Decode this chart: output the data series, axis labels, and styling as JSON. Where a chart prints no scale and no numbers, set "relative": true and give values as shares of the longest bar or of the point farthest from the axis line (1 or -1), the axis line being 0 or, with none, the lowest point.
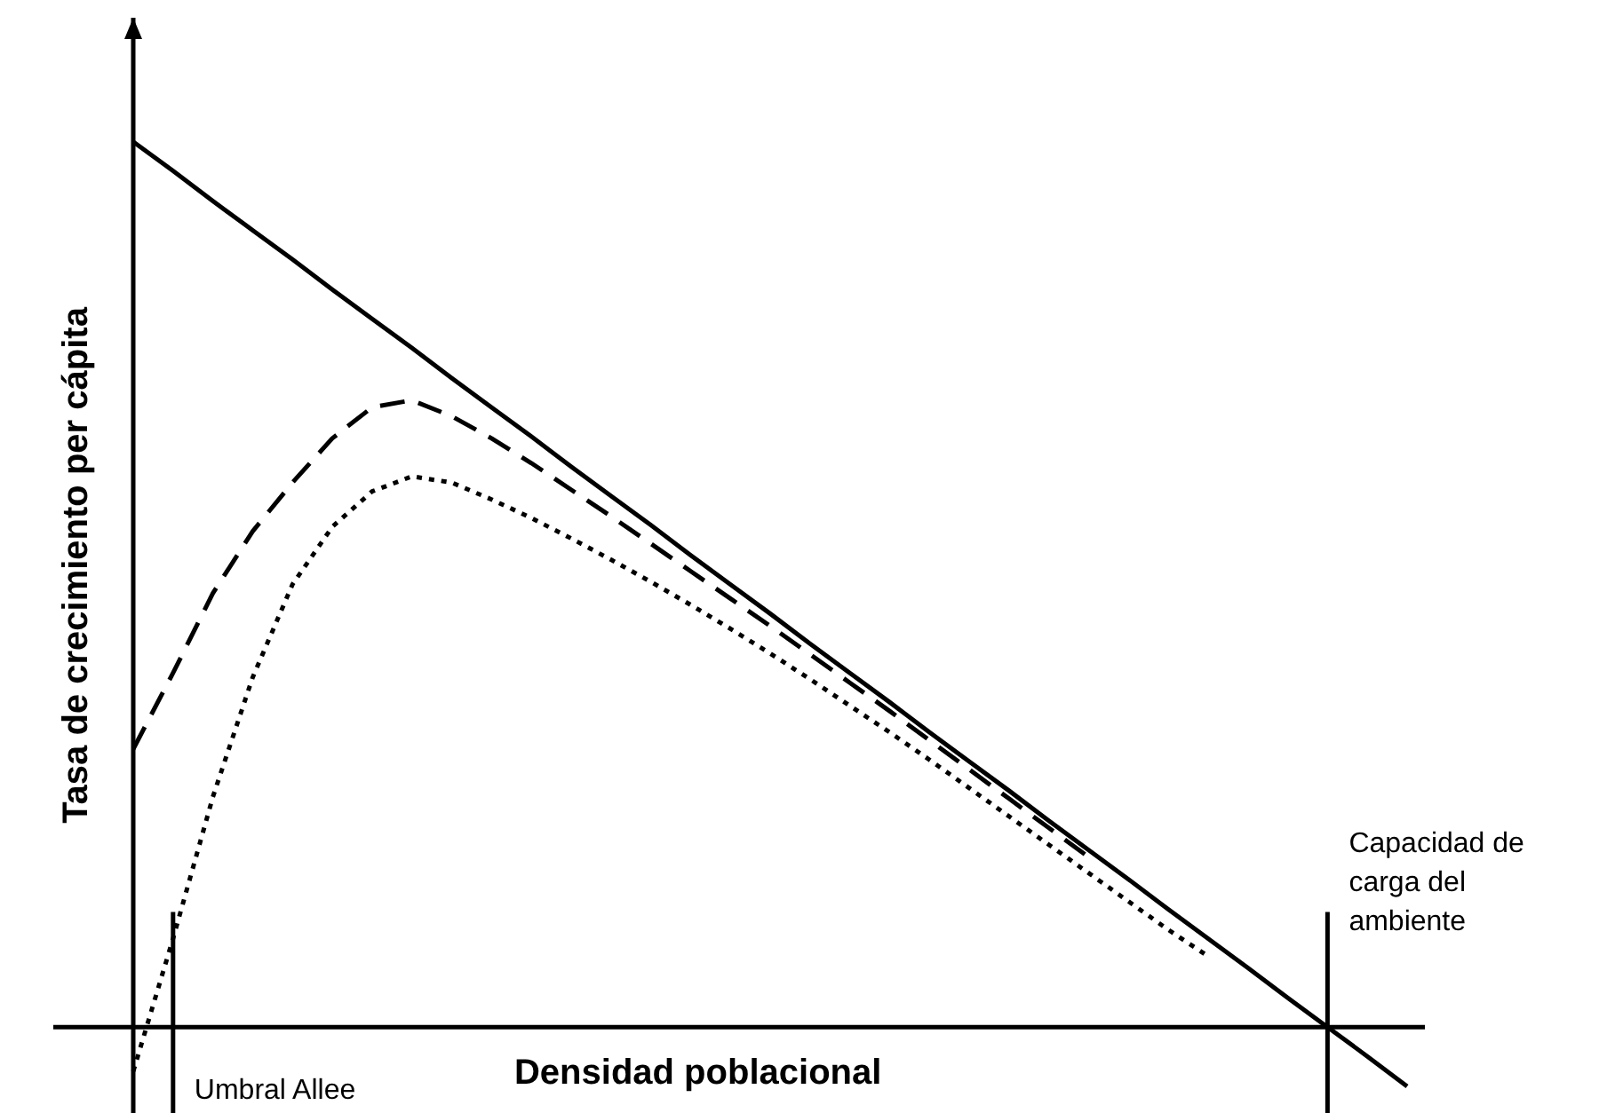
{
  "chart_data": {
    "type": "line",
    "relative": true,
    "xlabel": "Densidad poblacional",
    "ylabel": "Tasa de crecimiento per cápita",
    "marker": "none",
    "categories": [
      null,
      null,
      null,
      null,
      null,
      null,
      null,
      null,
      null,
      null,
      null,
      null,
      null,
      null,
      null,
      null,
      null,
      null,
      null,
      null,
      null,
      null,
      null,
      null,
      null,
      null,
      null,
      null,
      null,
      null,
      null,
      null,
      null
    ],
    "series": [
      {
        "color": "#000000",
        "line_style": "solid",
        "values": [
          1,
          0.967,
          0.933,
          0.9,
          0.867,
          0.833,
          0.8,
          0.767,
          0.733,
          0.7,
          0.667,
          0.633,
          0.6,
          0.567,
          0.533,
          0.5,
          0.467,
          0.433,
          0.4,
          0.367,
          0.333,
          0.3,
          0.267,
          0.233,
          0.2,
          0.167,
          0.133,
          0.1,
          0.067,
          0.033,
          0,
          -0.033,
          -0.067
        ]
      },
      {
        "color": "#000000",
        "line_style": "dashed",
        "values": [
          0.314,
          0.4,
          0.49,
          0.56,
          0.615,
          0.665,
          0.7,
          0.708,
          0.69,
          0.665,
          0.637,
          0.607,
          0.577,
          0.546,
          0.515,
          0.484,
          0.453,
          0.421,
          0.389,
          0.357,
          0.324,
          0.291,
          0.258,
          0.225,
          0.192,
          null,
          null,
          null,
          null,
          null,
          null,
          null,
          null
        ]
      },
      {
        "color": "#000000",
        "line_style": "dotted",
        "values": [
          -0.05,
          0.1,
          0.26,
          0.395,
          0.5,
          0.565,
          0.605,
          0.622,
          0.615,
          0.596,
          0.575,
          0.552,
          0.528,
          0.503,
          0.477,
          0.45,
          0.422,
          0.393,
          0.363,
          0.333,
          0.302,
          0.27,
          0.238,
          0.206,
          0.174,
          0.142,
          0.11,
          0.08,
          null,
          null,
          null,
          null,
          null
        ]
      }
    ],
    "annotations": [
      "Umbral Allee",
      "Capacidad de carga del ambiente"
    ]
  }
}
